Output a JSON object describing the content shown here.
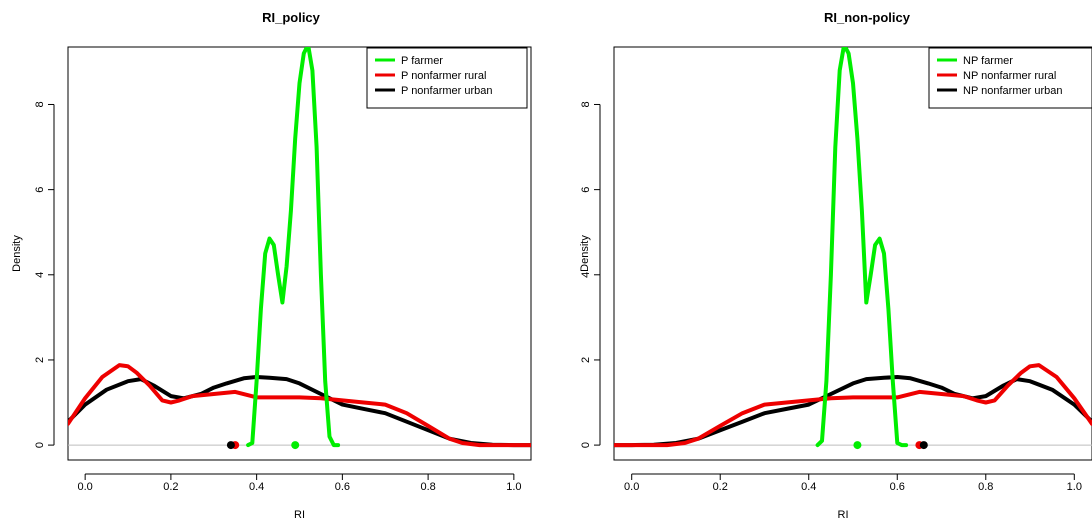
{
  "chart_data": [
    {
      "type": "line",
      "title": "RI_policy",
      "xlabel": "RI",
      "ylabel": "Density",
      "xlim": [
        -0.04,
        1.04
      ],
      "ylim": [
        -0.35,
        9.35
      ],
      "xticks": [
        "0.0",
        "0.2",
        "0.4",
        "0.6",
        "0.8",
        "1.0"
      ],
      "yticks": [
        "0",
        "2",
        "4",
        "6",
        "8"
      ],
      "legend_position": "top-right",
      "reference_line_y": 0,
      "series": [
        {
          "name": "P farmer",
          "color": "#00ee00",
          "x": [
            0.38,
            0.39,
            0.4,
            0.41,
            0.42,
            0.43,
            0.44,
            0.45,
            0.46,
            0.47,
            0.48,
            0.49,
            0.5,
            0.51,
            0.52,
            0.53,
            0.54,
            0.55,
            0.56,
            0.57,
            0.58,
            0.59
          ],
          "y": [
            0,
            0.05,
            1.5,
            3.2,
            4.5,
            4.85,
            4.7,
            4.0,
            3.35,
            4.2,
            5.5,
            7.2,
            8.5,
            9.2,
            9.4,
            8.8,
            7.0,
            4.0,
            1.5,
            0.2,
            0,
            0
          ],
          "mean": 0.49
        },
        {
          "name": "P nonfarmer rural",
          "color": "#ee0000",
          "x": [
            -0.04,
            0.0,
            0.04,
            0.08,
            0.1,
            0.12,
            0.15,
            0.18,
            0.2,
            0.22,
            0.25,
            0.3,
            0.35,
            0.4,
            0.45,
            0.5,
            0.55,
            0.6,
            0.65,
            0.7,
            0.75,
            0.8,
            0.85,
            0.88,
            0.92,
            1.0,
            1.04
          ],
          "y": [
            0.5,
            1.1,
            1.6,
            1.88,
            1.85,
            1.7,
            1.4,
            1.05,
            1.0,
            1.05,
            1.15,
            1.2,
            1.25,
            1.12,
            1.12,
            1.12,
            1.1,
            1.05,
            1.0,
            0.95,
            0.75,
            0.45,
            0.15,
            0.05,
            0,
            0,
            0
          ],
          "mean": 0.35
        },
        {
          "name": "P nonfarmer urban",
          "color": "#000000",
          "x": [
            -0.04,
            0.0,
            0.05,
            0.1,
            0.13,
            0.16,
            0.2,
            0.23,
            0.27,
            0.3,
            0.33,
            0.37,
            0.4,
            0.43,
            0.47,
            0.5,
            0.55,
            0.6,
            0.65,
            0.7,
            0.75,
            0.8,
            0.85,
            0.9,
            0.95,
            1.0,
            1.04
          ],
          "y": [
            0.55,
            0.95,
            1.3,
            1.5,
            1.55,
            1.4,
            1.15,
            1.1,
            1.2,
            1.35,
            1.45,
            1.57,
            1.6,
            1.58,
            1.55,
            1.45,
            1.2,
            0.95,
            0.85,
            0.75,
            0.55,
            0.35,
            0.15,
            0.05,
            0.01,
            0,
            0
          ],
          "mean": 0.34
        }
      ]
    },
    {
      "type": "line",
      "title": "RI_non-policy",
      "xlabel": "RI",
      "ylabel": "Density",
      "xlim": [
        -0.04,
        1.04
      ],
      "ylim": [
        -0.35,
        9.35
      ],
      "xticks": [
        "0.0",
        "0.2",
        "0.4",
        "0.6",
        "0.8",
        "1.0"
      ],
      "yticks": [
        "0",
        "2",
        "4",
        "6",
        "8"
      ],
      "legend_position": "top-right",
      "reference_line_y": 0,
      "series": [
        {
          "name": "NP farmer",
          "color": "#00ee00",
          "x": [
            0.42,
            0.43,
            0.44,
            0.45,
            0.46,
            0.47,
            0.48,
            0.49,
            0.5,
            0.51,
            0.52,
            0.53,
            0.54,
            0.55,
            0.56,
            0.57,
            0.58,
            0.59,
            0.6,
            0.61,
            0.62
          ],
          "y": [
            0,
            0.1,
            1.5,
            4.0,
            7.0,
            8.8,
            9.4,
            9.2,
            8.5,
            7.2,
            5.5,
            3.35,
            4.0,
            4.7,
            4.85,
            4.5,
            3.2,
            1.5,
            0.05,
            0,
            0
          ],
          "mean": 0.51
        },
        {
          "name": "NP nonfarmer rural",
          "color": "#ee0000",
          "x": [
            -0.04,
            0.0,
            0.08,
            0.12,
            0.15,
            0.2,
            0.25,
            0.3,
            0.35,
            0.4,
            0.45,
            0.5,
            0.55,
            0.6,
            0.65,
            0.7,
            0.75,
            0.78,
            0.8,
            0.82,
            0.85,
            0.88,
            0.9,
            0.92,
            0.96,
            1.0,
            1.04
          ],
          "y": [
            0,
            0,
            0,
            0.05,
            0.15,
            0.45,
            0.75,
            0.95,
            1.0,
            1.05,
            1.1,
            1.12,
            1.12,
            1.12,
            1.25,
            1.2,
            1.15,
            1.05,
            1.0,
            1.05,
            1.4,
            1.7,
            1.85,
            1.88,
            1.6,
            1.1,
            0.5
          ],
          "mean": 0.65
        },
        {
          "name": "NP nonfarmer urban",
          "color": "#000000",
          "x": [
            -0.04,
            0.0,
            0.05,
            0.1,
            0.15,
            0.2,
            0.25,
            0.3,
            0.35,
            0.4,
            0.45,
            0.5,
            0.53,
            0.57,
            0.6,
            0.63,
            0.67,
            0.7,
            0.73,
            0.77,
            0.8,
            0.84,
            0.87,
            0.9,
            0.95,
            1.0,
            1.04
          ],
          "y": [
            0,
            0,
            0.01,
            0.05,
            0.15,
            0.35,
            0.55,
            0.75,
            0.85,
            0.95,
            1.2,
            1.45,
            1.55,
            1.58,
            1.6,
            1.57,
            1.45,
            1.35,
            1.2,
            1.1,
            1.15,
            1.4,
            1.55,
            1.5,
            1.3,
            0.95,
            0.55
          ],
          "mean": 0.66
        }
      ]
    }
  ]
}
